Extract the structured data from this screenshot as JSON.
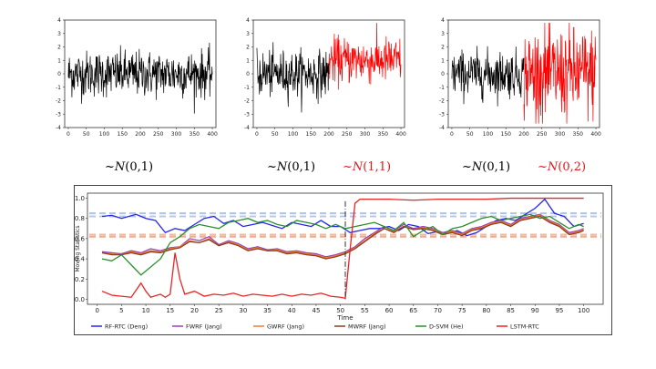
{
  "formulas": [
    {
      "prefix": "~",
      "dist": "N",
      "params": "(0,1)",
      "color": "#111111"
    },
    {
      "prefix": "~",
      "dist": "N",
      "params": "(0,1)",
      "color": "#111111"
    },
    {
      "prefix": "~",
      "dist": "N",
      "params": "(1,1)",
      "color": "#e0191b"
    },
    {
      "prefix": "~",
      "dist": "N",
      "params": "(0,1)",
      "color": "#111111"
    },
    {
      "prefix": "~",
      "dist": "N",
      "params": "(0,2)",
      "color": "#e0191b"
    }
  ],
  "chart_data": [
    {
      "type": "line",
      "x_ticks": [
        0,
        50,
        100,
        150,
        200,
        250,
        300,
        350,
        400
      ],
      "y_ticks": [
        -4,
        -3,
        -2,
        -1,
        0,
        1,
        2,
        3,
        4
      ],
      "xlim": [
        -10,
        410
      ],
      "ylim": [
        -4,
        4
      ],
      "segments": [
        {
          "x_start": 0,
          "x_end": 400,
          "mean": 0,
          "sd": 1,
          "color": "#000000"
        }
      ]
    },
    {
      "type": "line",
      "x_ticks": [
        0,
        50,
        100,
        150,
        200,
        250,
        300,
        350,
        400
      ],
      "y_ticks": [
        -4,
        -3,
        -2,
        -1,
        0,
        1,
        2,
        3,
        4
      ],
      "xlim": [
        -10,
        410
      ],
      "ylim": [
        -4,
        4
      ],
      "segments": [
        {
          "x_start": 0,
          "x_end": 200,
          "mean": 0,
          "sd": 1,
          "color": "#000000"
        },
        {
          "x_start": 200,
          "x_end": 400,
          "mean": 1,
          "sd": 1,
          "color": "#ff0000"
        }
      ]
    },
    {
      "type": "line",
      "x_ticks": [
        0,
        50,
        100,
        150,
        200,
        250,
        300,
        350,
        400
      ],
      "y_ticks": [
        -4,
        -3,
        -2,
        -1,
        0,
        1,
        2,
        3,
        4
      ],
      "xlim": [
        -10,
        410
      ],
      "ylim": [
        -4,
        4
      ],
      "segments": [
        {
          "x_start": 0,
          "x_end": 200,
          "mean": 0,
          "sd": 1,
          "color": "#000000"
        },
        {
          "x_start": 200,
          "x_end": 400,
          "mean": 0,
          "sd": 2,
          "color": "#ff0000"
        }
      ]
    },
    {
      "type": "line",
      "xlabel": "Time",
      "ylabel": "Moving Statistics",
      "x_ticks": [
        0,
        5,
        10,
        15,
        20,
        25,
        30,
        35,
        40,
        45,
        50,
        55,
        60,
        65,
        70,
        75,
        80,
        85,
        90,
        95,
        100
      ],
      "y_ticks": [
        0.0,
        0.2,
        0.4,
        0.6,
        0.8,
        1.0
      ],
      "xlim": [
        -2,
        104
      ],
      "ylim": [
        -0.05,
        1.05
      ],
      "change_point": 51,
      "thresholds": [
        {
          "y": 0.85,
          "color": "#aac4ea"
        },
        {
          "y": 0.82,
          "color": "#b8c9e6"
        },
        {
          "y": 0.64,
          "color": "#f4b79a"
        },
        {
          "y": 0.62,
          "color": "#f1a98f"
        }
      ],
      "legend_position": "bottom",
      "series": [
        {
          "name": "RF-RTC (Deng)",
          "color": "#2626ee",
          "x": [
            1,
            3,
            5,
            8,
            10,
            12,
            14,
            16,
            18,
            20,
            22,
            24,
            26,
            28,
            30,
            32,
            34,
            36,
            38,
            40,
            42,
            44,
            46,
            48,
            50,
            52,
            54,
            56,
            58,
            60,
            62,
            64,
            66,
            68,
            70,
            72,
            74,
            76,
            78,
            80,
            82,
            84,
            86,
            88,
            90,
            92,
            94,
            96,
            98,
            100
          ],
          "y": [
            0.82,
            0.83,
            0.8,
            0.84,
            0.8,
            0.78,
            0.66,
            0.7,
            0.68,
            0.74,
            0.8,
            0.82,
            0.75,
            0.78,
            0.72,
            0.74,
            0.76,
            0.73,
            0.7,
            0.76,
            0.74,
            0.72,
            0.78,
            0.72,
            0.72,
            0.66,
            0.68,
            0.7,
            0.7,
            0.72,
            0.68,
            0.74,
            0.72,
            0.65,
            0.67,
            0.65,
            0.68,
            0.63,
            0.66,
            0.72,
            0.78,
            0.8,
            0.78,
            0.84,
            0.9,
            0.99,
            0.85,
            0.82,
            0.72,
            0.75
          ]
        },
        {
          "name": "FWRF (Jang)",
          "color": "#9b3fb5",
          "x": [
            1,
            3,
            5,
            7,
            9,
            11,
            13,
            15,
            17,
            19,
            21,
            23,
            25,
            27,
            29,
            31,
            33,
            35,
            37,
            39,
            41,
            43,
            45,
            47,
            49,
            51,
            53,
            55,
            57,
            59,
            61,
            63,
            65,
            67,
            69,
            71,
            73,
            75,
            77,
            79,
            81,
            83,
            85,
            87,
            89,
            91,
            93,
            95,
            97,
            99,
            100
          ],
          "y": [
            0.47,
            0.46,
            0.45,
            0.48,
            0.46,
            0.5,
            0.48,
            0.51,
            0.52,
            0.6,
            0.58,
            0.62,
            0.54,
            0.58,
            0.55,
            0.5,
            0.52,
            0.49,
            0.5,
            0.47,
            0.48,
            0.46,
            0.45,
            0.42,
            0.44,
            0.47,
            0.52,
            0.6,
            0.66,
            0.72,
            0.68,
            0.74,
            0.7,
            0.72,
            0.7,
            0.66,
            0.68,
            0.65,
            0.7,
            0.72,
            0.76,
            0.78,
            0.74,
            0.8,
            0.82,
            0.84,
            0.78,
            0.74,
            0.66,
            0.68,
            0.7
          ]
        },
        {
          "name": "GWRF (Jang)",
          "color": "#f07b2e",
          "x": [
            1,
            3,
            5,
            7,
            9,
            11,
            13,
            15,
            17,
            19,
            21,
            23,
            25,
            27,
            29,
            31,
            33,
            35,
            37,
            39,
            41,
            43,
            45,
            47,
            49,
            51,
            53,
            55,
            57,
            59,
            61,
            63,
            65,
            67,
            69,
            71,
            73,
            75,
            77,
            79,
            81,
            83,
            85,
            87,
            89,
            91,
            93,
            95,
            97,
            99,
            100
          ],
          "y": [
            0.46,
            0.45,
            0.44,
            0.47,
            0.45,
            0.48,
            0.47,
            0.5,
            0.52,
            0.58,
            0.56,
            0.6,
            0.53,
            0.57,
            0.54,
            0.49,
            0.51,
            0.48,
            0.49,
            0.46,
            0.47,
            0.45,
            0.44,
            0.41,
            0.43,
            0.46,
            0.51,
            0.58,
            0.65,
            0.7,
            0.67,
            0.72,
            0.69,
            0.71,
            0.69,
            0.65,
            0.67,
            0.64,
            0.69,
            0.71,
            0.75,
            0.77,
            0.73,
            0.79,
            0.81,
            0.83,
            0.77,
            0.73,
            0.65,
            0.67,
            0.69
          ]
        },
        {
          "name": "MWRF (Jang)",
          "color": "#8c3e20",
          "x": [
            1,
            3,
            5,
            7,
            9,
            11,
            13,
            15,
            17,
            19,
            21,
            23,
            25,
            27,
            29,
            31,
            33,
            35,
            37,
            39,
            41,
            43,
            45,
            47,
            49,
            51,
            53,
            55,
            57,
            59,
            61,
            63,
            65,
            67,
            69,
            71,
            73,
            75,
            77,
            79,
            81,
            83,
            85,
            87,
            89,
            91,
            93,
            95,
            97,
            99,
            100
          ],
          "y": [
            0.46,
            0.44,
            0.44,
            0.46,
            0.44,
            0.47,
            0.46,
            0.49,
            0.51,
            0.57,
            0.56,
            0.59,
            0.53,
            0.56,
            0.53,
            0.48,
            0.5,
            0.48,
            0.48,
            0.45,
            0.46,
            0.44,
            0.43,
            0.4,
            0.42,
            0.45,
            0.5,
            0.57,
            0.64,
            0.7,
            0.66,
            0.72,
            0.69,
            0.7,
            0.68,
            0.64,
            0.66,
            0.63,
            0.68,
            0.7,
            0.74,
            0.76,
            0.72,
            0.78,
            0.8,
            0.82,
            0.76,
            0.72,
            0.64,
            0.66,
            0.68
          ]
        },
        {
          "name": "D-SVM (He)",
          "color": "#2c8f2c",
          "x": [
            1,
            3,
            5,
            7,
            9,
            11,
            13,
            15,
            17,
            19,
            21,
            23,
            25,
            27,
            29,
            31,
            33,
            35,
            37,
            39,
            41,
            43,
            45,
            47,
            49,
            51,
            53,
            55,
            57,
            59,
            61,
            63,
            65,
            67,
            69,
            71,
            73,
            75,
            77,
            79,
            81,
            83,
            85,
            87,
            89,
            91,
            93,
            95,
            97,
            99,
            100
          ],
          "y": [
            0.4,
            0.38,
            0.44,
            0.34,
            0.24,
            0.32,
            0.4,
            0.56,
            0.62,
            0.7,
            0.74,
            0.72,
            0.7,
            0.76,
            0.78,
            0.8,
            0.76,
            0.78,
            0.74,
            0.72,
            0.78,
            0.76,
            0.74,
            0.7,
            0.74,
            0.7,
            0.72,
            0.74,
            0.76,
            0.72,
            0.68,
            0.76,
            0.62,
            0.68,
            0.72,
            0.64,
            0.7,
            0.72,
            0.76,
            0.8,
            0.82,
            0.78,
            0.8,
            0.82,
            0.84,
            0.8,
            0.82,
            0.76,
            0.7,
            0.74,
            0.72
          ]
        },
        {
          "name": "LSTM-RTC",
          "color": "#e82424",
          "x": [
            1,
            3,
            5,
            7,
            9,
            10,
            11,
            13,
            14,
            15,
            16,
            17,
            18,
            20,
            22,
            24,
            26,
            28,
            30,
            32,
            34,
            36,
            38,
            40,
            42,
            44,
            46,
            48,
            50,
            51,
            52,
            53,
            54,
            56,
            60,
            65,
            70,
            75,
            80,
            85,
            90,
            95,
            100
          ],
          "y": [
            0.08,
            0.04,
            0.03,
            0.02,
            0.16,
            0.08,
            0.02,
            0.05,
            0.02,
            0.05,
            0.46,
            0.2,
            0.05,
            0.08,
            0.03,
            0.05,
            0.04,
            0.06,
            0.03,
            0.05,
            0.04,
            0.03,
            0.05,
            0.03,
            0.05,
            0.04,
            0.06,
            0.03,
            0.02,
            0.01,
            0.5,
            0.95,
            0.99,
            0.99,
            0.99,
            0.98,
            0.99,
            0.99,
            0.99,
            1.0,
            1.0,
            1.0,
            1.0
          ]
        }
      ]
    }
  ]
}
